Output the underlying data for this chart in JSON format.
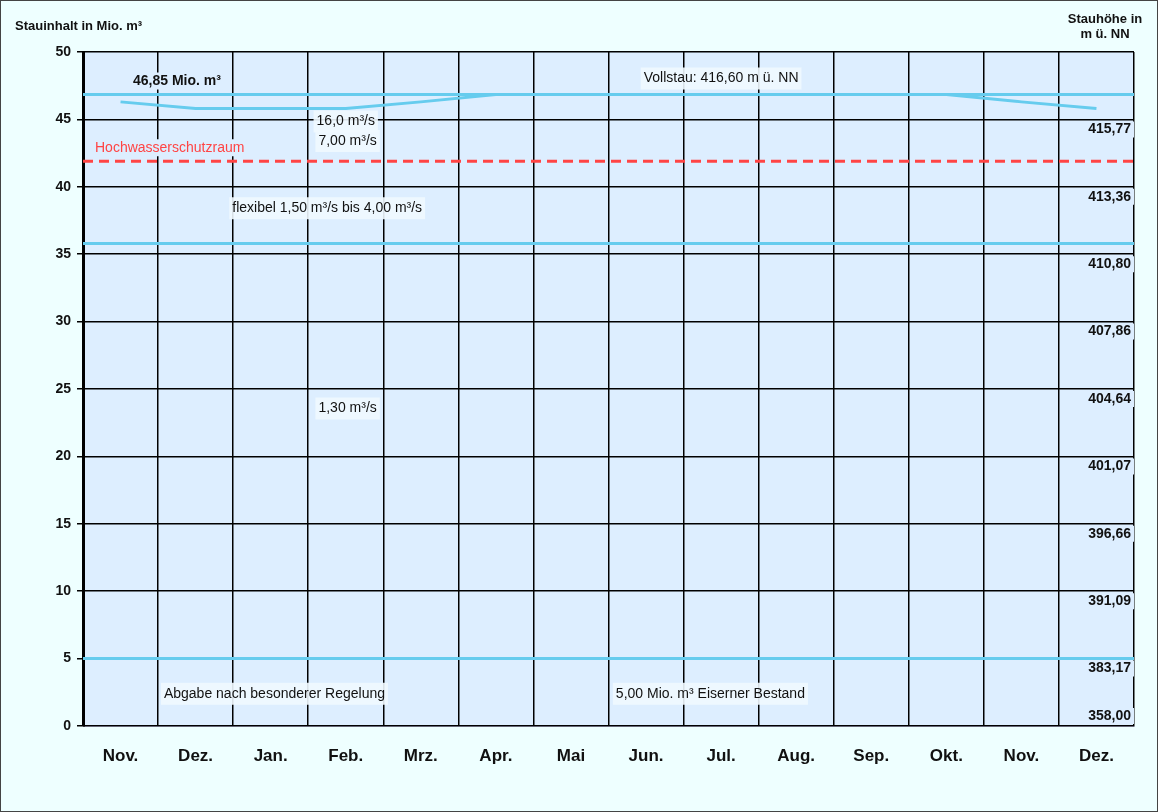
{
  "chart_data": {
    "type": "line",
    "ylabel": "Stauinhalt in Mio. m³",
    "y2label": "Stauhöhe in m ü. NN",
    "categories": [
      "Nov.",
      "Dez.",
      "Jan.",
      "Feb.",
      "Mrz.",
      "Apr.",
      "Mai",
      "Jun.",
      "Jul.",
      "Aug.",
      "Sep.",
      "Okt.",
      "Nov.",
      "Dez."
    ],
    "ylim": [
      0,
      50
    ],
    "yticks": [
      0,
      5,
      10,
      15,
      20,
      25,
      30,
      35,
      40,
      45,
      50
    ],
    "series": [
      {
        "color": "#66ccee",
        "values": [
          46.3,
          45.8,
          45.8,
          45.8,
          46.3,
          46.85,
          null,
          null,
          null,
          null,
          null,
          null,
          null,
          null
        ]
      },
      {
        "color": "#66ccee",
        "values": [
          null,
          null,
          null,
          null,
          null,
          null,
          null,
          null,
          null,
          null,
          null,
          46.85,
          46.3,
          45.8
        ]
      }
    ],
    "ref_lines": [
      {
        "axis": "y",
        "value": 46.85,
        "label": "46,85 Mio. m³",
        "color": "#66ccee",
        "line_style": "solid"
      },
      {
        "axis": "y",
        "value": 41.9,
        "label": "Hochwasserschutzraum",
        "color": "#ff4444",
        "line_style": "dashed"
      },
      {
        "axis": "y",
        "value": 35.8,
        "color": "#66ccee",
        "line_style": "solid"
      },
      {
        "axis": "y",
        "value": 5,
        "color": "#66ccee",
        "line_style": "solid"
      }
    ],
    "annotations": [
      {
        "text": "Vollstau: 416,60 m ü. NN",
        "x": "Jul.",
        "y": 46.85
      },
      {
        "text": "16,0 m³/s",
        "x": "Feb.",
        "y": 45.8
      },
      "7,00 m³/s",
      "flexibel 1,50 m³/s bis 4,00 m³/s",
      "1,30 m³/s",
      "Abgabe nach besonderer Regelung",
      "5,00 Mio. m³ Eiserner Bestand",
      "358,00",
      "383,17",
      "391,09",
      "396,66",
      "401,07",
      "404,64",
      "407,86",
      "410,80",
      "413,36",
      "415,77"
    ],
    "grid": true,
    "marker": "none",
    "line_style": "solid"
  }
}
